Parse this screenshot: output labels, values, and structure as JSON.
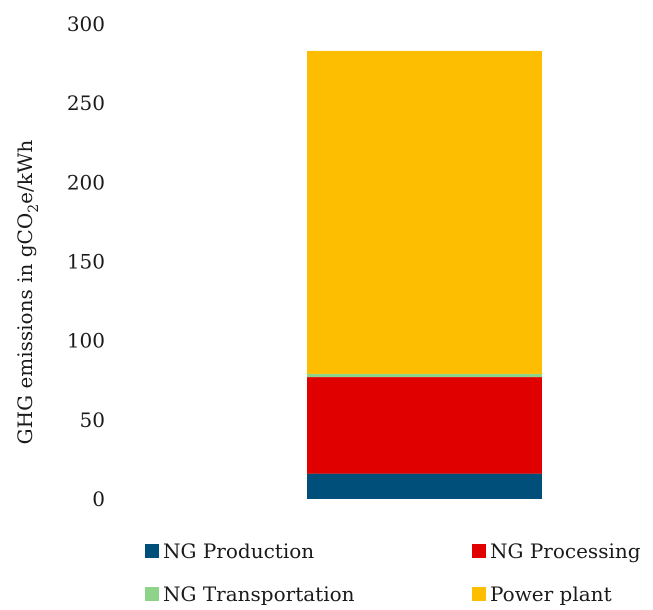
{
  "chart_data": {
    "type": "bar",
    "stacked": true,
    "categories": [
      ""
    ],
    "series": [
      {
        "name": "NG Production",
        "values": [
          16
        ],
        "color": "#004E7A"
      },
      {
        "name": "NG Processing",
        "values": [
          61
        ],
        "color": "#E00000"
      },
      {
        "name": "NG Transportation",
        "values": [
          2
        ],
        "color": "#8DD38A"
      },
      {
        "name": "Power plant",
        "values": [
          204
        ],
        "color": "#FDBD00"
      }
    ],
    "ylabel_main": "GHG emissions in gCO",
    "ylabel_sub": "2",
    "ylabel_tail": "e/kWh",
    "ylim": [
      0,
      300
    ],
    "yticks": [
      "0",
      "50",
      "100",
      "150",
      "200",
      "250",
      "300"
    ],
    "grid": false,
    "legend_position": "bottom"
  }
}
